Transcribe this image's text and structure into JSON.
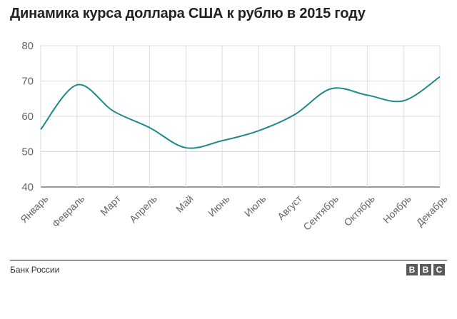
{
  "chart_data": {
    "type": "line",
    "title": "Динамика курса доллара США к рублю в 2015 году",
    "categories": [
      "Январь",
      "Февраль",
      "Март",
      "Апрель",
      "Май",
      "Июнь",
      "Июль",
      "Август",
      "Сентябрь",
      "Октябрь",
      "Ноябрь",
      "Декабрь"
    ],
    "series": [
      {
        "values": [
          56.3,
          68.9,
          61.5,
          56.8,
          51.1,
          53.1,
          55.9,
          60.5,
          67.8,
          66.0,
          64.4,
          71.2
        ]
      }
    ],
    "ylim": [
      40,
      80
    ],
    "yticks": [
      40,
      50,
      60,
      70,
      80
    ],
    "grid": true,
    "colors": {
      "line": "#1a8a8a",
      "grid": "#dddddd",
      "axis": "#333333"
    }
  },
  "footer": {
    "source": "Банк России",
    "logo_letters": [
      "B",
      "B",
      "C"
    ]
  }
}
